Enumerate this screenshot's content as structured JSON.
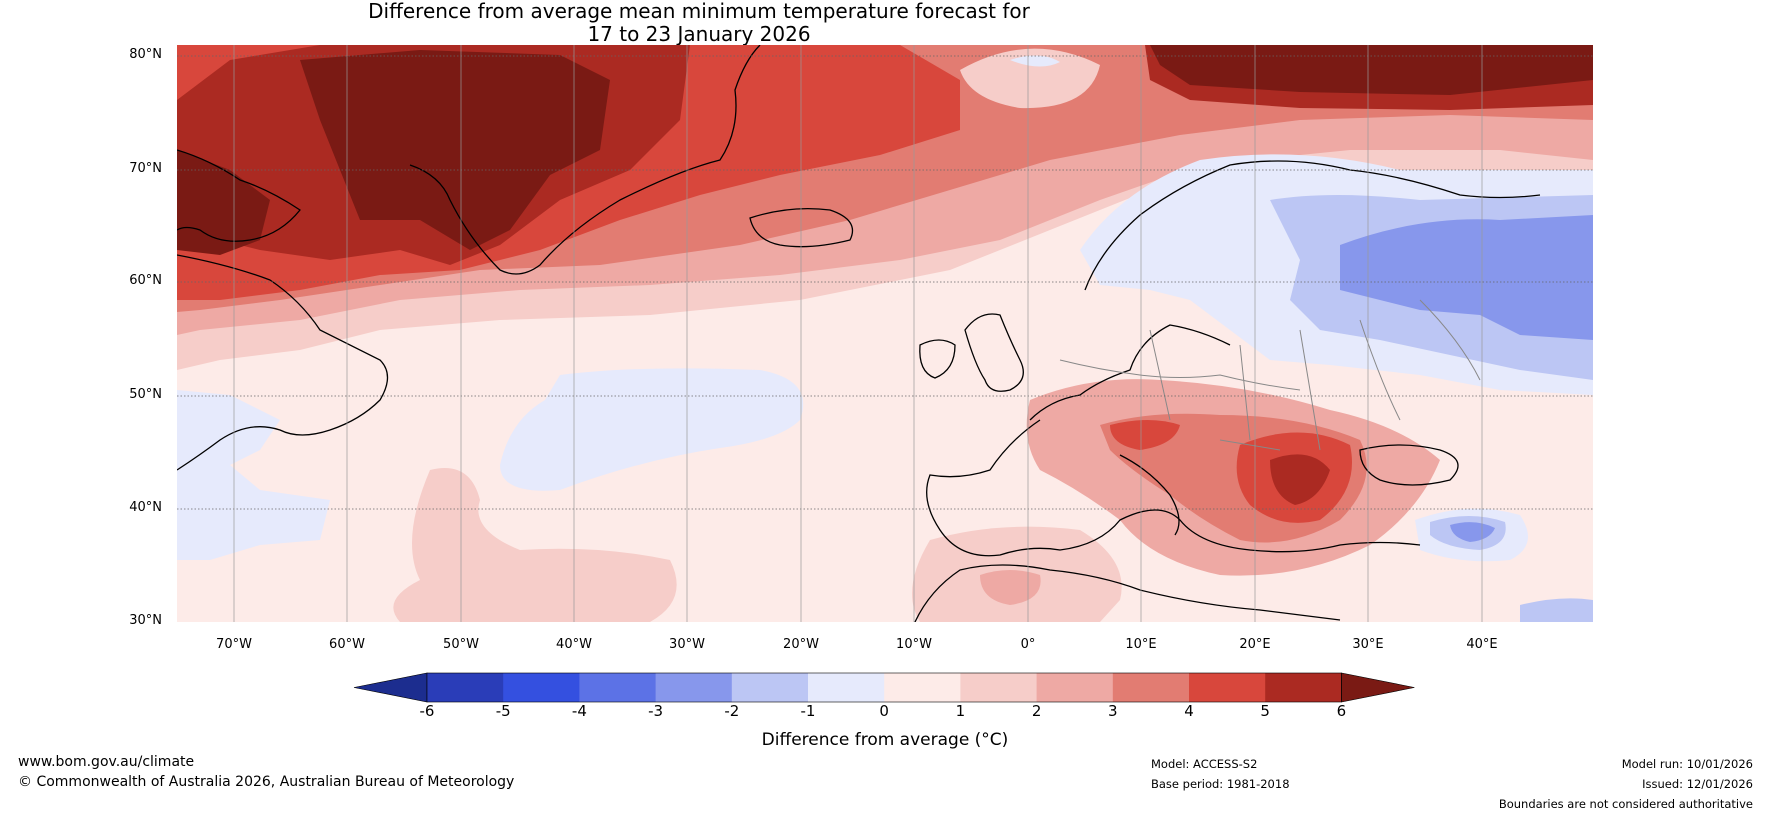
{
  "title": {
    "line1": "Difference from average mean minimum temperature forecast for",
    "line2": "17 to 23 January 2026"
  },
  "map": {
    "lat_ticks": [
      "80°N",
      "70°N",
      "60°N",
      "50°N",
      "40°N",
      "30°N"
    ],
    "lon_ticks": [
      "70°W",
      "60°W",
      "50°W",
      "40°W",
      "30°W",
      "20°W",
      "10°W",
      "0°",
      "10°E",
      "20°E",
      "30°E",
      "40°E"
    ],
    "colors": {
      "ocean_base": "#fdebe8",
      "land_base": "#fdebe8",
      "coast": "#000000",
      "border": "#888888"
    }
  },
  "colorbar": {
    "ticks": [
      "-6",
      "-5",
      "-4",
      "-3",
      "-2",
      "-1",
      "0",
      "1",
      "2",
      "3",
      "4",
      "5",
      "6"
    ],
    "colors": [
      "#1c2d8f",
      "#2a3db8",
      "#3450e0",
      "#5c72e6",
      "#8797ec",
      "#bcc6f4",
      "#e6eafc",
      "#fdebe8",
      "#f6cdc9",
      "#eea9a4",
      "#e27c72",
      "#d8473c",
      "#ab2a22",
      "#7a1a14"
    ],
    "label": "Difference from average (°C)"
  },
  "footer": {
    "website": "www.bom.gov.au/climate",
    "copyright": "© Commonwealth of Australia 2026, Australian Bureau of Meteorology",
    "model": "Model: ACCESS-S2",
    "base_period": "Base period: 1981-2018",
    "model_run": "Model run: 10/01/2026",
    "issued": "Issued: 12/01/2026",
    "disclaimer": "Boundaries are not considered authoritative"
  }
}
